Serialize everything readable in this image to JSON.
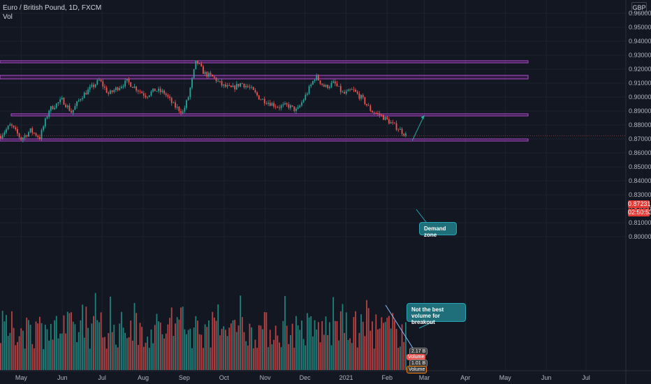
{
  "header": {
    "symbol_line": "Euro / British Pound, 1D, FXCM",
    "indicator_label": "Vol"
  },
  "currency_button": "GBP",
  "price_axis": {
    "ticks": [
      "0.96000",
      "0.95000",
      "0.94000",
      "0.93000",
      "0.92000",
      "0.91000",
      "0.90000",
      "0.89000",
      "0.88000",
      "0.87000",
      "0.86000",
      "0.85000",
      "0.84000",
      "0.83000",
      "0.82000",
      "0.81000",
      "0.80000"
    ]
  },
  "last_price": {
    "price": "0.87231",
    "countdown": "02:50:53",
    "color": "#e53935"
  },
  "time_axis": {
    "ticks": [
      "May",
      "Jun",
      "Jul",
      "Aug",
      "Sep",
      "Oct",
      "Nov",
      "Dec",
      "2021",
      "Feb",
      "Mar",
      "Apr",
      "May",
      "Jun",
      "Jul"
    ]
  },
  "annotations": {
    "demand_zone": "Demand zone",
    "volume_note": "Not the best volume for breakout"
  },
  "volume_badges": [
    "2.17 B",
    "Volume",
    "1.01 B",
    "Volume"
  ],
  "colors": {
    "up": "#26a69a",
    "down": "#ef5350",
    "zone": "#9c27b0",
    "callout": "#1f6f7a"
  },
  "chart_data": {
    "type": "candlestick",
    "instrument": "Euro / British Pound",
    "timeframe": "1D",
    "x_range": [
      "2020-04-15",
      "2021-07-31"
    ],
    "y_range": [
      0.795,
      0.965
    ],
    "horizontal_zones": [
      {
        "low": 0.9245,
        "high": 0.926
      },
      {
        "low": 0.913,
        "high": 0.9155
      },
      {
        "low": 0.8865,
        "high": 0.888
      },
      {
        "low": 0.8685,
        "high": 0.87
      }
    ],
    "last_price": 0.87231,
    "price_path": [
      {
        "date": "2020-04-15",
        "close": 0.872
      },
      {
        "date": "2020-04-23",
        "close": 0.88
      },
      {
        "date": "2020-05-01",
        "close": 0.87
      },
      {
        "date": "2020-05-08",
        "close": 0.876
      },
      {
        "date": "2020-05-15",
        "close": 0.871
      },
      {
        "date": "2020-05-22",
        "close": 0.891
      },
      {
        "date": "2020-06-01",
        "close": 0.898
      },
      {
        "date": "2020-06-08",
        "close": 0.889
      },
      {
        "date": "2020-06-15",
        "close": 0.9
      },
      {
        "date": "2020-06-22",
        "close": 0.906
      },
      {
        "date": "2020-06-29",
        "close": 0.912
      },
      {
        "date": "2020-07-06",
        "close": 0.902
      },
      {
        "date": "2020-07-13",
        "close": 0.907
      },
      {
        "date": "2020-07-20",
        "close": 0.911
      },
      {
        "date": "2020-07-27",
        "close": 0.906
      },
      {
        "date": "2020-08-03",
        "close": 0.901
      },
      {
        "date": "2020-08-10",
        "close": 0.905
      },
      {
        "date": "2020-08-17",
        "close": 0.903
      },
      {
        "date": "2020-08-24",
        "close": 0.894
      },
      {
        "date": "2020-08-31",
        "close": 0.889
      },
      {
        "date": "2020-09-04",
        "close": 0.9
      },
      {
        "date": "2020-09-10",
        "close": 0.926
      },
      {
        "date": "2020-09-16",
        "close": 0.917
      },
      {
        "date": "2020-09-23",
        "close": 0.914
      },
      {
        "date": "2020-09-30",
        "close": 0.908
      },
      {
        "date": "2020-10-07",
        "close": 0.906
      },
      {
        "date": "2020-10-14",
        "close": 0.91
      },
      {
        "date": "2020-10-21",
        "close": 0.906
      },
      {
        "date": "2020-10-28",
        "close": 0.899
      },
      {
        "date": "2020-11-04",
        "close": 0.896
      },
      {
        "date": "2020-11-11",
        "close": 0.893
      },
      {
        "date": "2020-11-18",
        "close": 0.894
      },
      {
        "date": "2020-11-25",
        "close": 0.89
      },
      {
        "date": "2020-12-02",
        "close": 0.902
      },
      {
        "date": "2020-12-09",
        "close": 0.915
      },
      {
        "date": "2020-12-16",
        "close": 0.907
      },
      {
        "date": "2020-12-23",
        "close": 0.91
      },
      {
        "date": "2020-12-30",
        "close": 0.902
      },
      {
        "date": "2021-01-06",
        "close": 0.905
      },
      {
        "date": "2021-01-13",
        "close": 0.899
      },
      {
        "date": "2021-01-20",
        "close": 0.89
      },
      {
        "date": "2021-01-27",
        "close": 0.887
      },
      {
        "date": "2021-02-03",
        "close": 0.882
      },
      {
        "date": "2021-02-10",
        "close": 0.877
      },
      {
        "date": "2021-02-16",
        "close": 0.872
      }
    ],
    "projection": {
      "from": {
        "date": "2021-02-20",
        "price": 0.869
      },
      "to": {
        "date": "2021-03-01",
        "price": 0.887
      }
    }
  }
}
